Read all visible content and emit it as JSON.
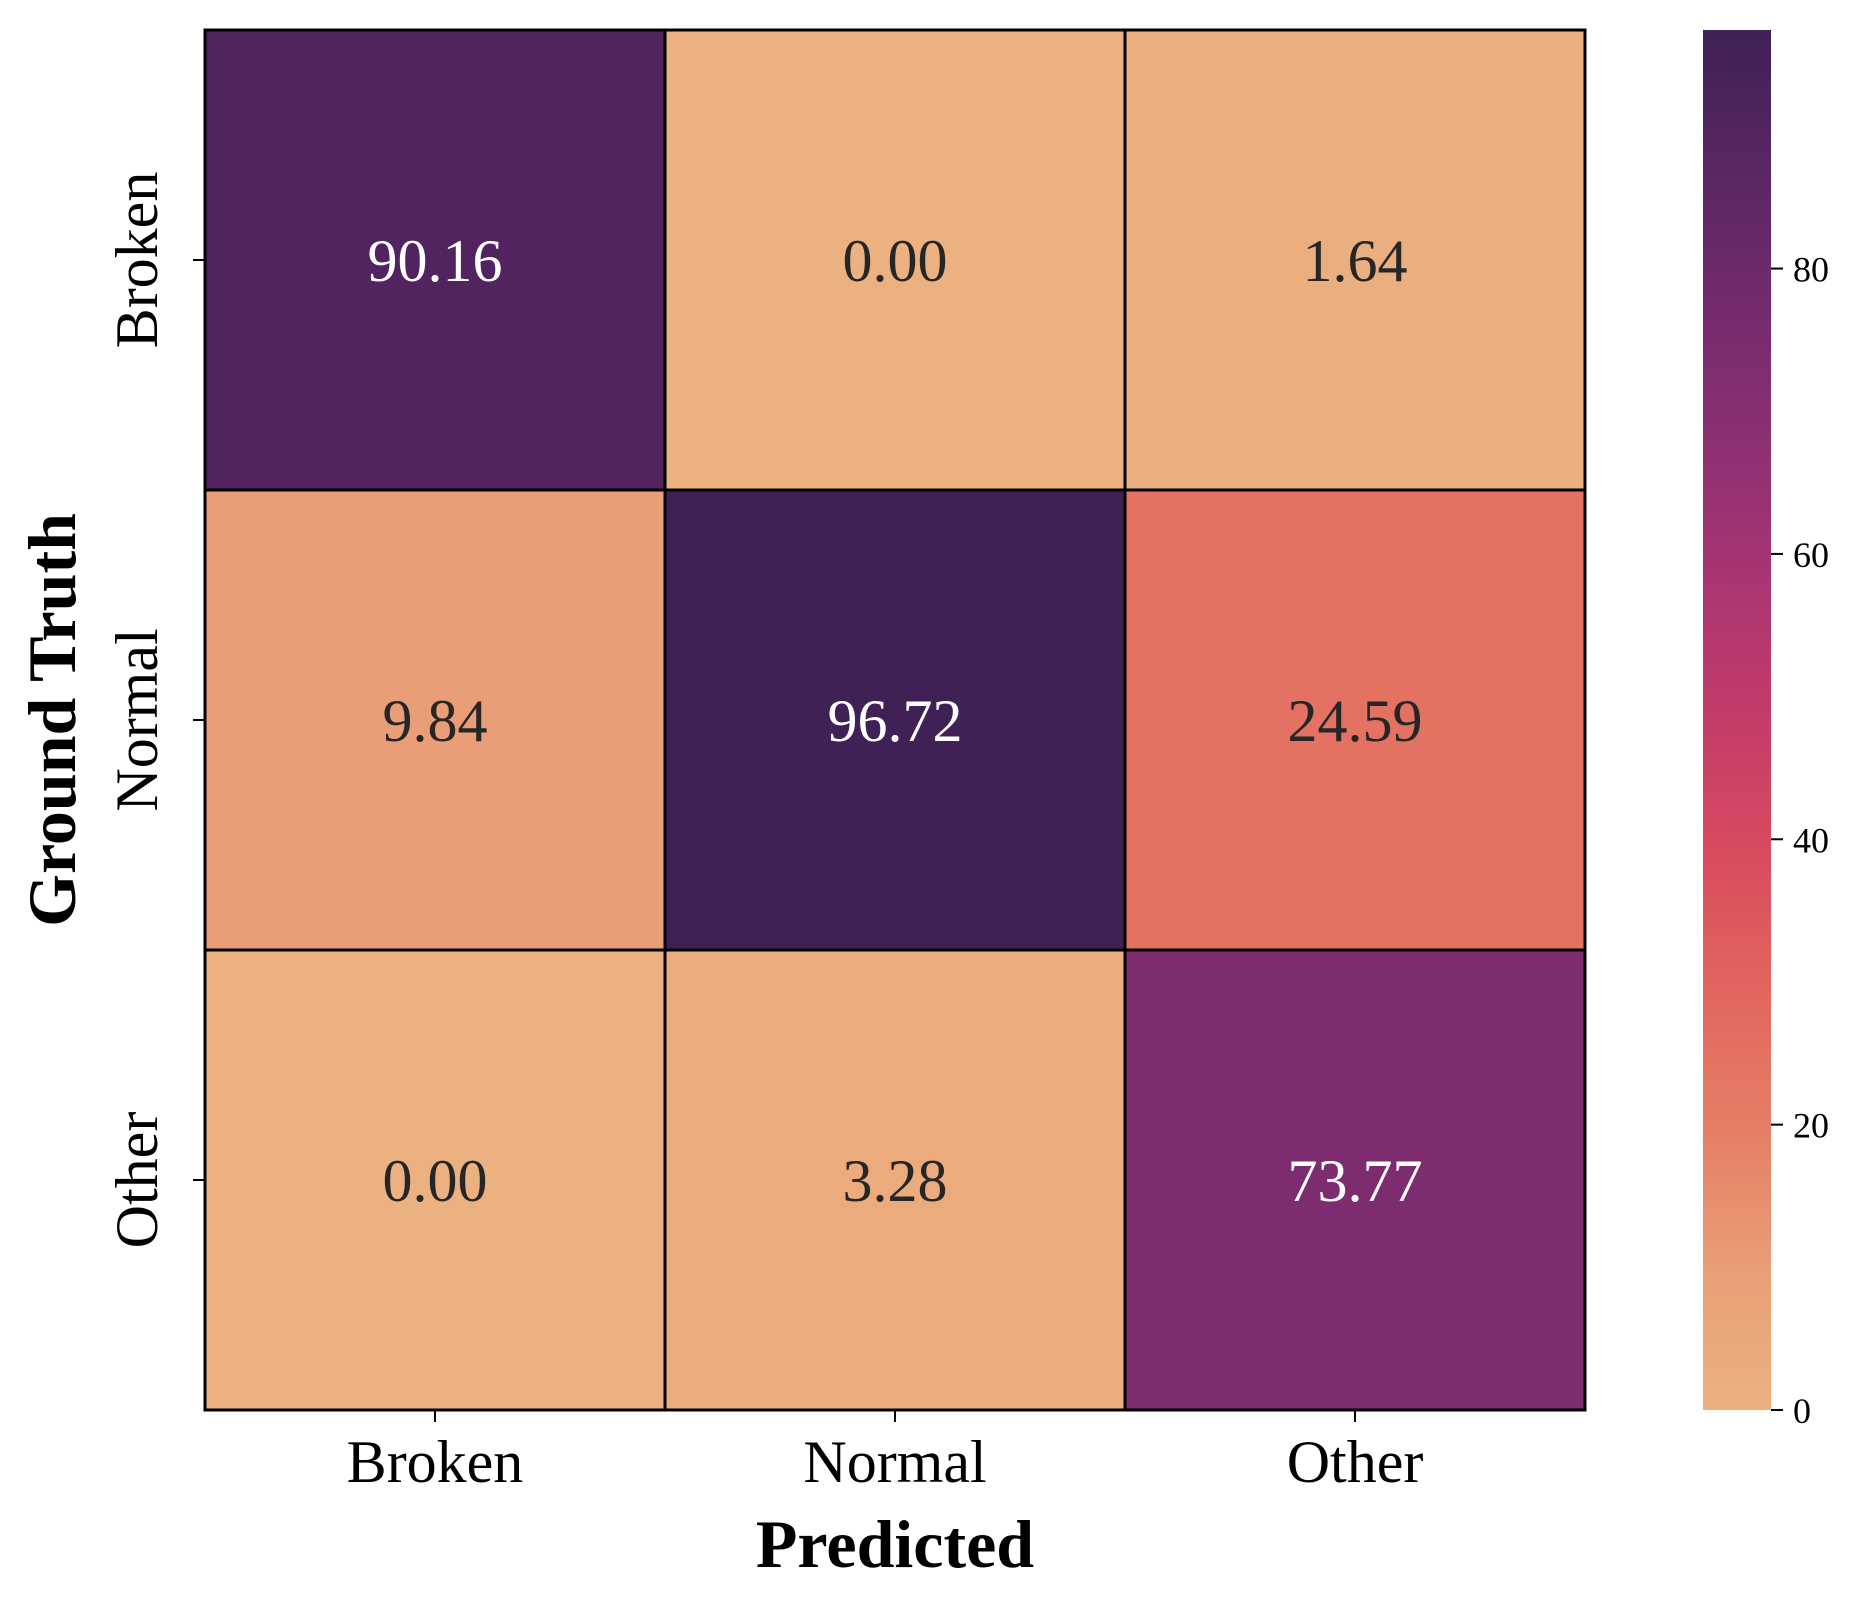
{
  "chart_data": {
    "type": "heatmap",
    "title": "",
    "xlabel": "Predicted",
    "ylabel": "Ground Truth",
    "x_categories": [
      "Broken",
      "Normal",
      "Other"
    ],
    "y_categories": [
      "Broken",
      "Normal",
      "Other"
    ],
    "values": [
      [
        90.16,
        0.0,
        1.64
      ],
      [
        9.84,
        96.72,
        24.59
      ],
      [
        0.0,
        3.28,
        73.77
      ]
    ],
    "cell_labels": [
      [
        "90.16",
        "0.00",
        "1.64"
      ],
      [
        "9.84",
        "96.72",
        "24.59"
      ],
      [
        "0.00",
        "3.28",
        "73.77"
      ]
    ],
    "colorbar": {
      "range": [
        0,
        96.72
      ],
      "ticks": [
        0,
        20,
        40,
        60,
        80
      ],
      "tick_labels": [
        "0",
        "20",
        "40",
        "60",
        "80"
      ]
    },
    "colormap": "flare",
    "cell_border_color": "#000000",
    "annotation_colors": {
      "dark_text": "#262626",
      "light_text": "#ffffff"
    },
    "grid": false,
    "legend": "colorbar-right"
  }
}
